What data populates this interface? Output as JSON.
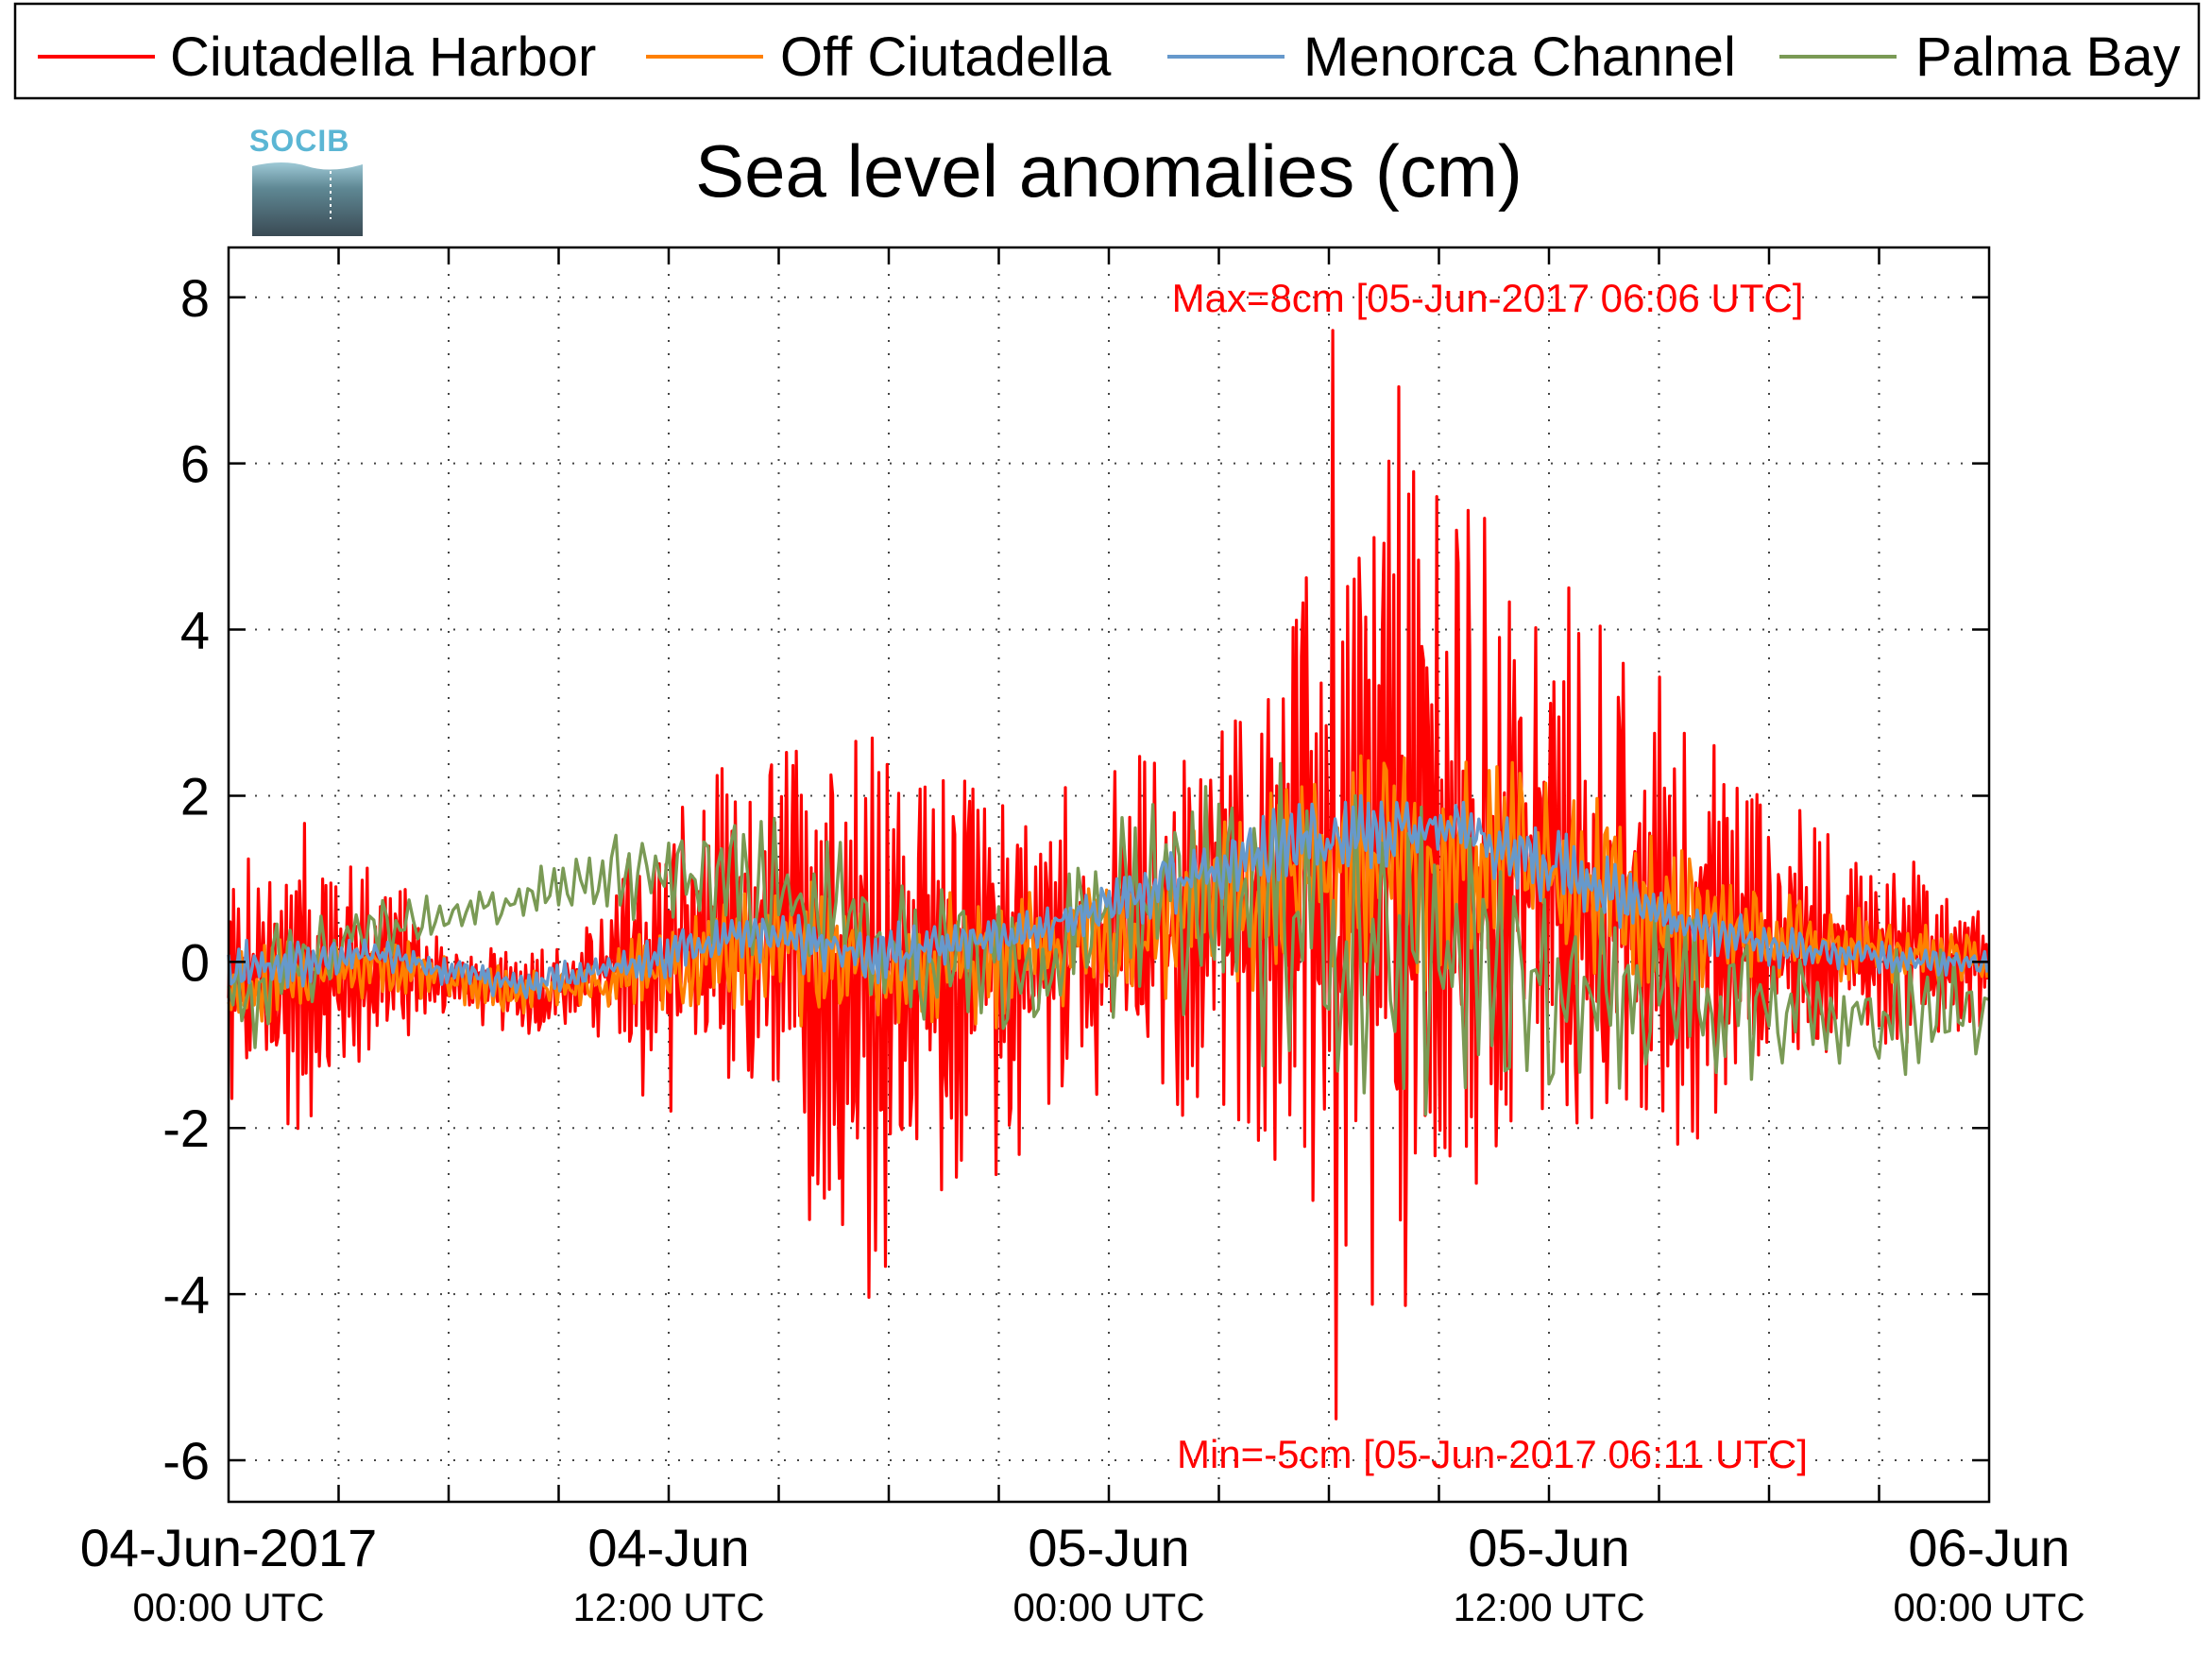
{
  "chart_data": {
    "type": "line",
    "title": "Sea level anomalies (cm)",
    "xlabel": "",
    "ylabel": "",
    "ylim": [
      -6.5,
      8.6
    ],
    "xlim": [
      "2017-06-04T00:00",
      "2017-06-06T00:00"
    ],
    "yticks": [
      -6,
      -4,
      -2,
      0,
      2,
      4,
      6,
      8
    ],
    "ytick_labels": [
      "-6",
      "-4",
      "-2",
      "0",
      "2",
      "4",
      "6",
      "8"
    ],
    "xticks": [
      {
        "date": "04-Jun-2017",
        "time": "00:00 UTC"
      },
      {
        "date": "04-Jun",
        "time": "12:00 UTC"
      },
      {
        "date": "05-Jun",
        "time": "00:00 UTC"
      },
      {
        "date": "05-Jun",
        "time": "12:00 UTC"
      },
      {
        "date": "06-Jun",
        "time": "00:00 UTC"
      }
    ],
    "grid": true,
    "legend_position": "top",
    "annotations": {
      "max": "Max=8cm [05-Jun-2017 06:06 UTC]",
      "min": "Min=-5cm [05-Jun-2017 06:11 UTC]",
      "color": "#ff0000"
    },
    "x_hours": [
      0,
      2,
      4,
      6,
      8,
      10,
      12,
      14,
      16,
      18,
      20,
      22,
      24,
      26,
      28,
      30,
      32,
      34,
      36,
      38,
      40,
      42,
      44,
      46,
      48
    ],
    "series": [
      {
        "name": "Ciutadella Harbor",
        "color": "#ff0000",
        "amplitude": [
          1.6,
          1.9,
          1.3,
          0.5,
          0.5,
          0.8,
          2.2,
          2.6,
          3.6,
          4.0,
          3.0,
          2.3,
          2.0,
          2.4,
          3.4,
          4.8,
          6.5,
          4.6,
          3.8,
          3.6,
          2.6,
          1.8,
          1.3,
          1.2,
          0.9
        ],
        "mean": [
          -0.3,
          -0.2,
          0.0,
          -0.2,
          -0.4,
          -0.2,
          0.1,
          0.2,
          0.0,
          -0.3,
          0.0,
          0.0,
          0.3,
          0.5,
          0.8,
          0.9,
          0.9,
          1.2,
          1.0,
          0.6,
          0.4,
          0.3,
          0.2,
          0.1,
          0.0
        ],
        "max": {
          "x_hours": 30.1,
          "y": 7.6
        },
        "min": {
          "x_hours": 30.2,
          "y": -5.5
        }
      },
      {
        "name": "Off Ciutadella",
        "color": "#ff8000",
        "amplitude": [
          0.6,
          0.5,
          0.4,
          0.3,
          0.3,
          0.3,
          0.7,
          0.8,
          1.0,
          1.0,
          0.9,
          0.8,
          0.9,
          1.0,
          1.3,
          1.5,
          1.6,
          1.5,
          1.3,
          1.1,
          0.9,
          0.7,
          0.5,
          0.4,
          0.3
        ],
        "mean": [
          -0.4,
          -0.2,
          0.0,
          -0.2,
          -0.4,
          -0.3,
          0.0,
          0.1,
          0.1,
          -0.1,
          0.0,
          0.1,
          0.3,
          0.6,
          0.9,
          1.1,
          1.2,
          1.2,
          1.1,
          0.7,
          0.4,
          0.3,
          0.2,
          0.1,
          0.0
        ]
      },
      {
        "name": "Menorca Channel",
        "color": "#6699cc",
        "amplitude": [
          0.4,
          0.3,
          0.2,
          0.2,
          0.2,
          0.2,
          0.3,
          0.3,
          0.4,
          0.4,
          0.3,
          0.3,
          0.4,
          0.4,
          0.5,
          0.5,
          0.5,
          0.5,
          0.5,
          0.4,
          0.3,
          0.3,
          0.2,
          0.2,
          0.2
        ],
        "mean": [
          -0.1,
          0.0,
          0.1,
          -0.1,
          -0.3,
          -0.1,
          0.1,
          0.3,
          0.2,
          0.1,
          0.2,
          0.4,
          0.7,
          1.0,
          1.3,
          1.5,
          1.6,
          1.5,
          1.2,
          0.8,
          0.4,
          0.2,
          0.1,
          0.0,
          0.0
        ]
      },
      {
        "name": "Palma Bay",
        "color": "#7a9a55",
        "amplitude": [
          1.0,
          0.6,
          0.4,
          0.3,
          0.3,
          0.4,
          0.8,
          0.9,
          1.1,
          1.0,
          1.0,
          1.0,
          1.2,
          1.6,
          2.0,
          2.2,
          2.1,
          1.8,
          1.5,
          1.3,
          1.1,
          1.0,
          0.9,
          0.8,
          0.7
        ],
        "mean": [
          -0.6,
          0.0,
          0.4,
          0.5,
          0.8,
          1.0,
          1.2,
          0.9,
          0.8,
          0.3,
          0.0,
          0.0,
          0.5,
          0.8,
          0.6,
          0.4,
          0.2,
          -0.1,
          -0.3,
          -0.4,
          -0.5,
          -0.6,
          -0.7,
          -0.6,
          -0.5
        ]
      }
    ]
  },
  "logo": {
    "text": "SOCIB"
  }
}
